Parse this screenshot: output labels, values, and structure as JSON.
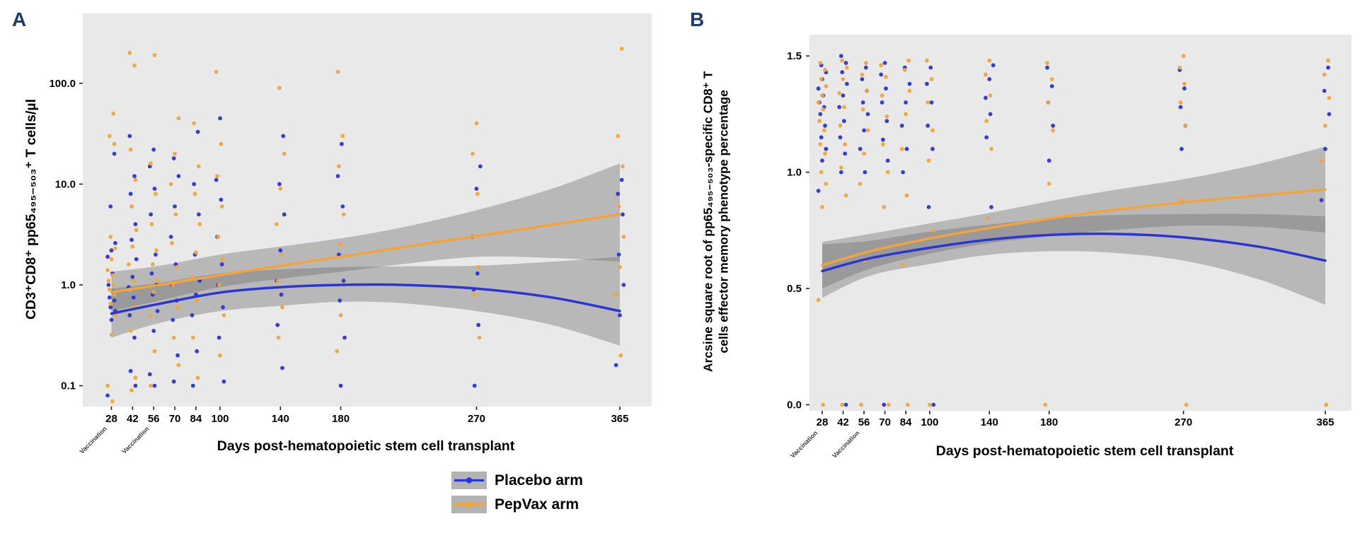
{
  "figure": {
    "panel_a_label": "A",
    "panel_b_label": "B",
    "vaccination_label": "Vaccination"
  },
  "colors": {
    "placebo": "#2b35d2",
    "pepvax": "#f2a43b",
    "ribbon": "#6e6e6e",
    "plot_bg": "#e9e9e9",
    "panel_label": "#1d3a6d"
  },
  "legend": {
    "items": [
      {
        "label": "Placebo arm",
        "color": "#2b35d2"
      },
      {
        "label": "PepVax arm",
        "color": "#f2a43b"
      }
    ]
  },
  "chart_data": [
    {
      "id": "A",
      "type": "scatter",
      "x_label": "Days post-hematopoietic stem cell transplant",
      "y_label": "CD3⁺CD8⁺ pp65₄₉₅₋₅₀₃⁺ T cells/µl",
      "y_scale": "log10",
      "x_ticks": [
        28,
        42,
        56,
        70,
        84,
        100,
        140,
        180,
        270,
        365
      ],
      "y_ticks": [
        0.1,
        1.0,
        10.0,
        100.0
      ],
      "y_tick_labels": [
        "0.1",
        "1.0",
        "10.0",
        "100.0"
      ],
      "xlim": [
        9,
        386
      ],
      "ylim": [
        0.062,
        490
      ],
      "legend_position": "bottom",
      "grid": false,
      "vaccination_marks": [
        28,
        56
      ],
      "points": [
        {
          "day": 28,
          "placebo": [
            0.08,
            0.45,
            0.55,
            0.6,
            0.7,
            0.75,
            0.85,
            1.0,
            1.3,
            1.9,
            2.2,
            2.6,
            6,
            20
          ],
          "pepvax": [
            0.07,
            0.1,
            0.32,
            0.5,
            0.65,
            0.8,
            0.9,
            1.0,
            1.1,
            1.25,
            1.4,
            1.8,
            2.3,
            3.0,
            25,
            30,
            50
          ]
        },
        {
          "day": 42,
          "placebo": [
            0.1,
            0.14,
            0.3,
            0.5,
            0.75,
            0.95,
            1.2,
            1.8,
            2.8,
            4,
            8,
            12,
            30
          ],
          "pepvax": [
            0.09,
            0.12,
            0.35,
            0.6,
            0.9,
            1.1,
            1.6,
            2.4,
            3.5,
            6,
            11,
            22,
            150,
            200
          ]
        },
        {
          "day": 56,
          "placebo": [
            0.1,
            0.13,
            0.35,
            0.55,
            0.8,
            1.0,
            1.3,
            2,
            5,
            9,
            15,
            22
          ],
          "pepvax": [
            0.1,
            0.22,
            0.5,
            0.85,
            1.1,
            1.6,
            2.2,
            4,
            8,
            16,
            190
          ]
        },
        {
          "day": 70,
          "placebo": [
            0.11,
            0.2,
            0.45,
            0.7,
            1.0,
            1.6,
            3,
            6,
            12,
            18
          ],
          "pepvax": [
            0.16,
            0.3,
            0.6,
            1.0,
            1.5,
            2.6,
            5,
            10,
            20,
            45
          ]
        },
        {
          "day": 84,
          "placebo": [
            0.1,
            0.22,
            0.5,
            0.8,
            1.1,
            2,
            5,
            10,
            33
          ],
          "pepvax": [
            0.12,
            0.3,
            0.7,
            1.2,
            2.1,
            4,
            8,
            15,
            40
          ]
        },
        {
          "day": 100,
          "placebo": [
            0.11,
            0.3,
            0.6,
            1.0,
            1.6,
            3,
            7,
            11,
            45
          ],
          "pepvax": [
            0.2,
            0.5,
            1.0,
            1.8,
            3,
            6,
            12,
            25,
            130
          ]
        },
        {
          "day": 140,
          "placebo": [
            0.15,
            0.4,
            0.8,
            1.1,
            2.2,
            5,
            10,
            30
          ],
          "pepvax": [
            0.3,
            0.6,
            1.1,
            2,
            4,
            9,
            20,
            90
          ]
        },
        {
          "day": 180,
          "placebo": [
            0.1,
            0.3,
            0.7,
            1.1,
            2,
            6,
            12,
            25
          ],
          "pepvax": [
            0.22,
            0.5,
            1.0,
            2.5,
            5,
            15,
            30,
            130
          ]
        },
        {
          "day": 270,
          "placebo": [
            0.1,
            0.4,
            0.9,
            1.3,
            3,
            9,
            15
          ],
          "pepvax": [
            0.3,
            0.8,
            1.5,
            3,
            8,
            20,
            40
          ]
        },
        {
          "day": 365,
          "placebo": [
            0.16,
            0.5,
            1.0,
            2,
            5,
            8,
            11
          ],
          "pepvax": [
            0.2,
            0.8,
            1.5,
            3,
            6,
            15,
            30,
            220
          ]
        }
      ],
      "smooth": {
        "x": [
          28,
          60,
          100,
          140,
          180,
          220,
          270,
          320,
          365
        ],
        "placebo": {
          "line": [
            0.52,
            0.65,
            0.84,
            0.95,
            1.0,
            1.0,
            0.92,
            0.75,
            0.55
          ],
          "lower": [
            0.3,
            0.42,
            0.55,
            0.62,
            0.68,
            0.66,
            0.55,
            0.4,
            0.25
          ],
          "upper": [
            0.92,
            1.05,
            1.3,
            1.42,
            1.5,
            1.53,
            1.55,
            1.7,
            1.9
          ]
        },
        "pepvax": {
          "line": [
            0.85,
            1.0,
            1.25,
            1.55,
            1.9,
            2.35,
            3.05,
            3.95,
            5.0
          ],
          "lower": [
            0.55,
            0.7,
            0.95,
            1.15,
            1.35,
            1.6,
            1.9,
            1.85,
            1.7
          ],
          "upper": [
            1.35,
            1.55,
            2.0,
            2.4,
            2.9,
            3.7,
            5.5,
            9.0,
            16.0
          ]
        }
      }
    },
    {
      "id": "B",
      "type": "scatter",
      "x_label": "Days post-hematopoietic stem cell transplant",
      "y_label_lines": [
        "Arcsine square root of pp65₄₉₅₋₅₀₃-specific CD8⁺ T",
        "cells effector memory phenotype percentage"
      ],
      "y_scale": "linear",
      "x_ticks": [
        28,
        42,
        56,
        70,
        84,
        100,
        140,
        180,
        270,
        365
      ],
      "y_ticks": [
        0.0,
        0.5,
        1.0,
        1.5
      ],
      "y_tick_labels": [
        "0.0",
        "0.5",
        "1.0",
        "1.5"
      ],
      "xlim": [
        19.5,
        382.5
      ],
      "ylim": [
        -0.03,
        1.59
      ],
      "legend_position": "bottom",
      "grid": false,
      "vaccination_marks": [
        28,
        56
      ],
      "points": [
        {
          "day": 28,
          "placebo": [
            0.92,
            1.05,
            1.1,
            1.15,
            1.2,
            1.25,
            1.28,
            1.3,
            1.33,
            1.36,
            1.4,
            1.43,
            1.46
          ],
          "pepvax": [
            0.0,
            0.45,
            0.85,
            0.95,
            1.0,
            1.08,
            1.12,
            1.18,
            1.22,
            1.27,
            1.3,
            1.33,
            1.37,
            1.4,
            1.44,
            1.47
          ]
        },
        {
          "day": 42,
          "placebo": [
            0.0,
            1.0,
            1.08,
            1.15,
            1.22,
            1.28,
            1.33,
            1.38,
            1.43,
            1.47,
            1.5
          ],
          "pepvax": [
            0.0,
            0.9,
            1.02,
            1.12,
            1.2,
            1.28,
            1.34,
            1.4,
            1.45,
            1.48
          ]
        },
        {
          "day": 56,
          "placebo": [
            1.0,
            1.1,
            1.18,
            1.25,
            1.3,
            1.35,
            1.4,
            1.45
          ],
          "pepvax": [
            0.0,
            0.62,
            0.95,
            1.08,
            1.18,
            1.27,
            1.35,
            1.42,
            1.47
          ]
        },
        {
          "day": 70,
          "placebo": [
            0.0,
            1.05,
            1.14,
            1.22,
            1.3,
            1.36,
            1.42,
            1.47
          ],
          "pepvax": [
            0.0,
            0.85,
            1.0,
            1.12,
            1.24,
            1.33,
            1.41,
            1.46
          ]
        },
        {
          "day": 84,
          "placebo": [
            1.0,
            1.1,
            1.2,
            1.3,
            1.38,
            1.45
          ],
          "pepvax": [
            0.0,
            0.6,
            0.9,
            1.1,
            1.25,
            1.35,
            1.44,
            1.48
          ]
        },
        {
          "day": 100,
          "placebo": [
            0.0,
            0.85,
            1.1,
            1.2,
            1.3,
            1.38,
            1.45
          ],
          "pepvax": [
            0.0,
            0.75,
            1.05,
            1.18,
            1.3,
            1.4,
            1.48
          ]
        },
        {
          "day": 140,
          "placebo": [
            0.85,
            1.15,
            1.25,
            1.32,
            1.4,
            1.46
          ],
          "pepvax": [
            0.8,
            1.1,
            1.22,
            1.33,
            1.42,
            1.48
          ]
        },
        {
          "day": 180,
          "placebo": [
            1.05,
            1.2,
            1.3,
            1.37,
            1.45
          ],
          "pepvax": [
            0.0,
            0.95,
            1.18,
            1.3,
            1.4,
            1.47
          ]
        },
        {
          "day": 270,
          "placebo": [
            1.1,
            1.2,
            1.28,
            1.36,
            1.44
          ],
          "pepvax": [
            0.0,
            0.88,
            1.2,
            1.3,
            1.38,
            1.45,
            1.5
          ]
        },
        {
          "day": 365,
          "placebo": [
            0.88,
            1.1,
            1.25,
            1.35,
            1.45
          ],
          "pepvax": [
            0.0,
            1.05,
            1.2,
            1.32,
            1.42,
            1.48
          ]
        }
      ],
      "smooth": {
        "x": [
          28,
          60,
          100,
          140,
          180,
          220,
          270,
          320,
          365
        ],
        "placebo": {
          "line": [
            0.575,
            0.63,
            0.675,
            0.71,
            0.73,
            0.735,
            0.72,
            0.68,
            0.62
          ],
          "lower": [
            0.46,
            0.555,
            0.605,
            0.645,
            0.66,
            0.655,
            0.62,
            0.54,
            0.43
          ],
          "upper": [
            0.69,
            0.705,
            0.745,
            0.775,
            0.8,
            0.815,
            0.82,
            0.82,
            0.81
          ]
        },
        "pepvax": {
          "line": [
            0.6,
            0.66,
            0.715,
            0.76,
            0.8,
            0.835,
            0.87,
            0.9,
            0.925
          ],
          "lower": [
            0.5,
            0.585,
            0.65,
            0.695,
            0.725,
            0.75,
            0.77,
            0.765,
            0.74
          ],
          "upper": [
            0.7,
            0.735,
            0.78,
            0.825,
            0.875,
            0.92,
            0.97,
            1.035,
            1.11
          ]
        }
      }
    }
  ]
}
